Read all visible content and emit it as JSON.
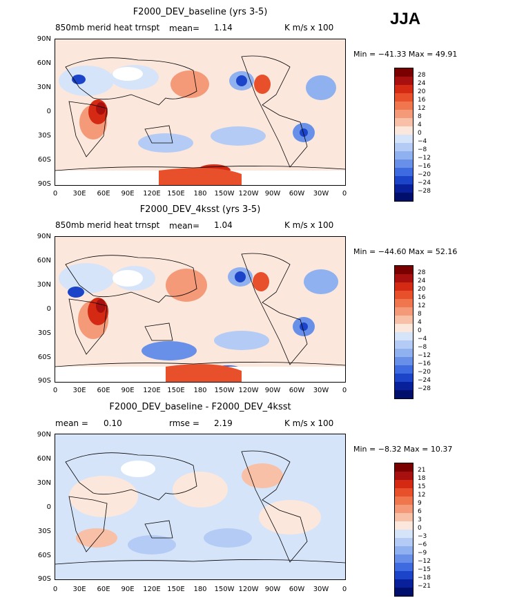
{
  "season": "JJA",
  "panels": [
    {
      "title": "F2000_DEV_baseline (yrs 3-5)",
      "left_label": "850mb merid heat trnspt",
      "mean_label": "mean=",
      "mean_value": "1.14",
      "units": "K m/s x 100",
      "minmax": "Min = −41.33 Max = 49.91",
      "colorbar_labels": [
        "28",
        "24",
        "20",
        "16",
        "12",
        "8",
        "4",
        "0",
        "−4",
        "−8",
        "−12",
        "−16",
        "−20",
        "−24",
        "−28"
      ]
    },
    {
      "title": "F2000_DEV_4ksst (yrs 3-5)",
      "left_label": "850mb merid heat trnspt",
      "mean_label": "mean=",
      "mean_value": "1.04",
      "units": "K m/s x 100",
      "minmax": "Min = −44.60 Max = 52.16",
      "colorbar_labels": [
        "28",
        "24",
        "20",
        "16",
        "12",
        "8",
        "4",
        "0",
        "−4",
        "−8",
        "−12",
        "−16",
        "−20",
        "−24",
        "−28"
      ]
    },
    {
      "title": "F2000_DEV_baseline - F2000_DEV_4ksst",
      "left_label": "mean =",
      "mean_label": "",
      "mean_value": "0.10",
      "rmse_label": "rmse =",
      "rmse_value": "2.19",
      "units": "K m/s x 100",
      "minmax": "Min = −8.32 Max = 10.37",
      "colorbar_labels": [
        "21",
        "18",
        "15",
        "12",
        "9",
        "6",
        "3",
        "0",
        "−3",
        "−6",
        "−9",
        "−12",
        "−15",
        "−18",
        "−21"
      ]
    }
  ],
  "lat_labels": [
    "90N",
    "60N",
    "30N",
    "0",
    "30S",
    "60S",
    "90S"
  ],
  "lon_labels": [
    "0",
    "30E",
    "60E",
    "90E",
    "120E",
    "150E",
    "180",
    "150W",
    "120W",
    "90W",
    "60W",
    "30W",
    "0"
  ],
  "colors": {
    "palette": [
      "#7a0000",
      "#a80f0f",
      "#d42a14",
      "#e8502b",
      "#f0764d",
      "#f59a79",
      "#f8c0a6",
      "#fbe7dc",
      "#d6e4fa",
      "#b4ccf5",
      "#8fb1ef",
      "#6890e8",
      "#3f6be0",
      "#1b44c9",
      "#08209a",
      "#000f6b"
    ]
  }
}
